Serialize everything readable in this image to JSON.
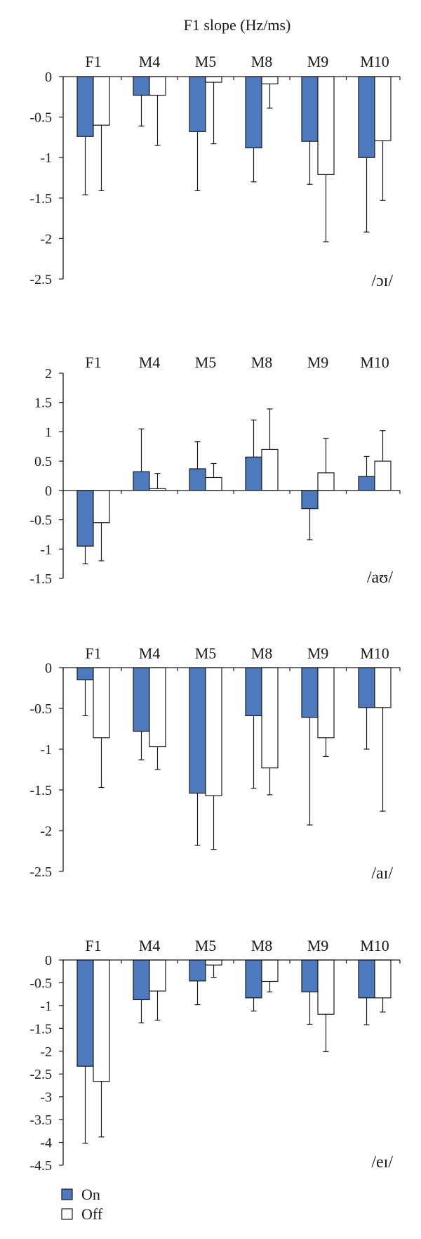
{
  "figure_title": "F1 slope (Hz/ms)",
  "legend": [
    {
      "label": "On",
      "color": "#4f79bd"
    },
    {
      "label": "Off",
      "color": "#ffffff"
    }
  ],
  "chart_data": [
    {
      "type": "bar",
      "title": "F1 slope (Hz/ms)",
      "annotation": "/ɔɪ/",
      "categories": [
        "F1",
        "M4",
        "M5",
        "M8",
        "M9",
        "M10"
      ],
      "ylim": [
        -2.5,
        0
      ],
      "yticks": [
        0,
        -0.5,
        -1,
        -1.5,
        -2,
        -2.5
      ],
      "ytick_labels": [
        "0",
        "-0.5",
        "-1",
        "-1.5",
        "-2",
        "-2.5"
      ],
      "series": [
        {
          "name": "On",
          "color": "#4f79bd",
          "values": [
            -0.74,
            -0.23,
            -0.68,
            -0.88,
            -0.8,
            -1.0
          ],
          "errors": [
            0.72,
            0.38,
            0.73,
            0.42,
            0.53,
            0.92
          ]
        },
        {
          "name": "Off",
          "color": "#ffffff",
          "values": [
            -0.6,
            -0.23,
            -0.07,
            -0.09,
            -1.21,
            -0.79
          ],
          "errors": [
            0.81,
            0.62,
            0.76,
            0.3,
            0.83,
            0.74
          ]
        }
      ]
    },
    {
      "type": "bar",
      "annotation": "/aʊ/",
      "categories": [
        "F1",
        "M4",
        "M5",
        "M8",
        "M9",
        "M10"
      ],
      "ylim": [
        -1.5,
        2
      ],
      "yticks": [
        2,
        1.5,
        1,
        0.5,
        0,
        -0.5,
        -1,
        -1.5
      ],
      "ytick_labels": [
        "2",
        "1.5",
        "1",
        "0.5",
        "0",
        "-0.5",
        "-1",
        "-1.5"
      ],
      "series": [
        {
          "name": "On",
          "color": "#4f79bd",
          "values": [
            -0.95,
            0.32,
            0.37,
            0.57,
            -0.31,
            0.24
          ],
          "errors": [
            0.3,
            0.73,
            0.46,
            0.63,
            0.53,
            0.34
          ]
        },
        {
          "name": "Off",
          "color": "#ffffff",
          "values": [
            -0.55,
            0.03,
            0.22,
            0.7,
            0.3,
            0.5
          ],
          "errors": [
            0.65,
            0.26,
            0.24,
            0.69,
            0.59,
            0.52
          ]
        }
      ]
    },
    {
      "type": "bar",
      "annotation": "/aɪ/",
      "categories": [
        "F1",
        "M4",
        "M5",
        "M8",
        "M9",
        "M10"
      ],
      "ylim": [
        -2.5,
        0
      ],
      "yticks": [
        0,
        -0.5,
        -1,
        -1.5,
        -2,
        -2.5
      ],
      "ytick_labels": [
        "0",
        "-0.5",
        "-1",
        "-1.5",
        "-2",
        "-2.5"
      ],
      "series": [
        {
          "name": "On",
          "color": "#4f79bd",
          "values": [
            -0.15,
            -0.78,
            -1.54,
            -0.59,
            -0.61,
            -0.49
          ],
          "errors": [
            0.44,
            0.35,
            0.64,
            0.89,
            1.32,
            0.51
          ]
        },
        {
          "name": "Off",
          "color": "#ffffff",
          "values": [
            -0.86,
            -0.97,
            -1.57,
            -1.23,
            -0.86,
            -0.49
          ],
          "errors": [
            0.61,
            0.28,
            0.66,
            0.33,
            0.23,
            1.27
          ]
        }
      ]
    },
    {
      "type": "bar",
      "annotation": "/eɪ/",
      "categories": [
        "F1",
        "M4",
        "M5",
        "M8",
        "M9",
        "M10"
      ],
      "ylim": [
        -4.5,
        0
      ],
      "yticks": [
        0,
        -0.5,
        -1,
        -1.5,
        -2,
        -2.5,
        -3,
        -3.5,
        -4,
        -4.5
      ],
      "ytick_labels": [
        "0",
        "-0.5",
        "-1",
        "-1.5",
        "-2",
        "-2.5",
        "-3",
        "-3.5",
        "-4",
        "-4.5"
      ],
      "series": [
        {
          "name": "On",
          "color": "#4f79bd",
          "values": [
            -2.33,
            -0.87,
            -0.46,
            -0.83,
            -0.7,
            -0.83
          ],
          "errors": [
            1.69,
            0.51,
            0.52,
            0.29,
            0.71,
            0.59
          ]
        },
        {
          "name": "Off",
          "color": "#ffffff",
          "values": [
            -2.66,
            -0.68,
            -0.11,
            -0.47,
            -1.19,
            -0.83
          ],
          "errors": [
            1.22,
            0.64,
            0.27,
            0.23,
            0.82,
            0.31
          ]
        }
      ]
    }
  ]
}
